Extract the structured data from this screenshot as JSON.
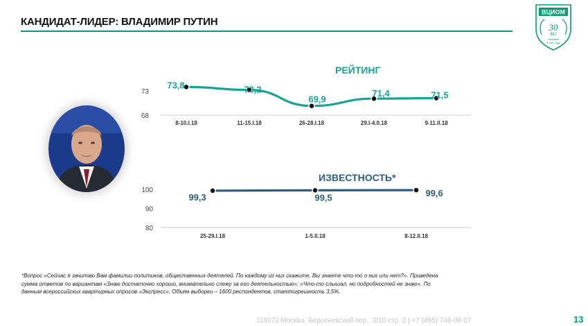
{
  "header": {
    "title": "КАНДИДАТ-ЛИДЕР: ВЛАДИМИР ПУТИН"
  },
  "logo": {
    "top_text": "ВЦИОМ",
    "years": "30 ЛЕТ",
    "founded": "Основан",
    "year": "в 1987 году"
  },
  "colors": {
    "accent": "#0b9a78",
    "rating": "#1aa393",
    "awareness": "#2e5c7a"
  },
  "chart_data": [
    {
      "type": "line",
      "title": "РЕЙТИНГ",
      "categories": [
        "8-10.I.18",
        "11-15.I.18",
        "26-28.I.18",
        "29.I-4.II.18",
        "9-11.II.18"
      ],
      "values": [
        73.8,
        73.2,
        69.9,
        71.4,
        71.5
      ],
      "value_labels": [
        "73,8",
        "73,2",
        "69,9",
        "71,4",
        "71,5"
      ],
      "yticks": [
        "73",
        "68"
      ],
      "ytick_values": [
        73,
        68
      ],
      "ylim": [
        68,
        74
      ],
      "grid": false
    },
    {
      "type": "line",
      "title": "ИЗВЕСТНОСТЬ*",
      "categories": [
        "25-29.I.18",
        "1-5.II.18",
        "8-12.II.18"
      ],
      "values": [
        99.3,
        99.5,
        99.6
      ],
      "value_labels": [
        "99,3",
        "99,5",
        "99,6"
      ],
      "yticks": [
        "100",
        "90",
        "80"
      ],
      "ytick_values": [
        100,
        90,
        80
      ],
      "ylim": [
        80,
        100
      ],
      "grid": false
    }
  ],
  "footnote": "*Вопрос «Сейчас я зачитаю Вам фамилии политиков, общественных деятелей. По каждому из них скажите, Вы знаете что-то о них или нет?». Приведена сумма ответов по вариантам «Знаю достаточно хорошо, внимательно слежу за его деятельностью»; «Что-то слышал, но подробностей не знаю». По данным всероссийских квартирных опросов «Экспресс». Объем выборки – 1600 респондентов, статпогрешность 3,5%.",
  "footer": {
    "address": "119072 Москва, Берсеневский пер., 3/10 стр. 2  |  +7 (495) 748-08-07",
    "page": "13"
  }
}
